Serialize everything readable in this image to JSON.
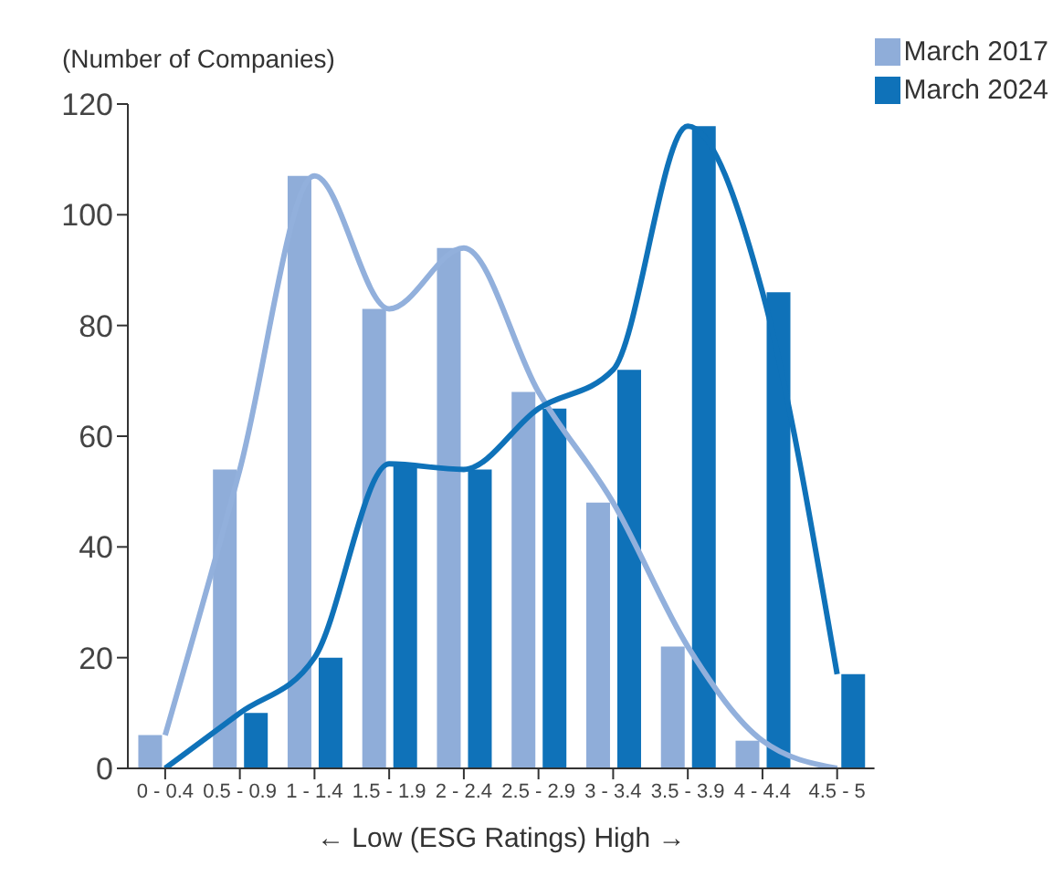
{
  "chart_data": {
    "type": "bar",
    "ylabel": "(Number of Companies)",
    "xlabel": "← Low  (ESG Ratings)  High →",
    "categories": [
      "0 - 0.4",
      "0.5 - 0.9",
      "1 - 1.4",
      "1.5 - 1.9",
      "2 - 2.4",
      "2.5 - 2.9",
      "3 - 3.4",
      "3.5 - 3.9",
      "4 - 4.4",
      "4.5 - 5"
    ],
    "series": [
      {
        "name": "March 2017",
        "color": "#8fadd9",
        "values": [
          6,
          54,
          107,
          83,
          94,
          68,
          48,
          22,
          5,
          0
        ]
      },
      {
        "name": "March 2024",
        "color": "#0f72b9",
        "values": [
          0,
          10,
          20,
          55,
          54,
          65,
          72,
          116,
          86,
          17
        ]
      },
      {
        "type": "line",
        "color": "#92b0dc",
        "values": [
          6,
          54,
          107,
          83,
          94,
          68,
          48,
          22,
          5,
          0
        ]
      },
      {
        "type": "line",
        "color": "#0f72b9",
        "values": [
          0,
          10,
          20,
          55,
          54,
          65,
          72,
          116,
          86,
          17
        ]
      }
    ],
    "ylim": [
      0,
      120
    ],
    "yticks": [
      0,
      20,
      40,
      60,
      80,
      100,
      120
    ],
    "grid": false,
    "legend": "top right",
    "marker": "none"
  }
}
